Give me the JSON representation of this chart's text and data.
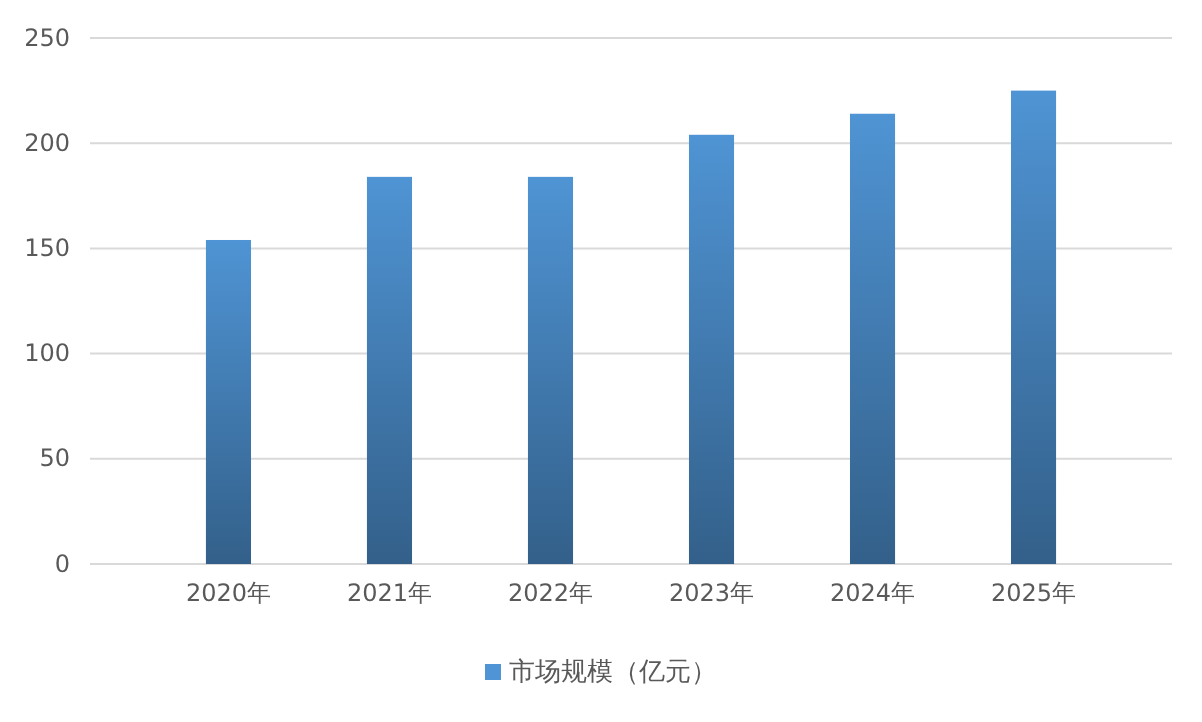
{
  "chart_data": {
    "type": "bar",
    "categories": [
      "2020年",
      "2021年",
      "2022年",
      "2023年",
      "2024年",
      "2025年"
    ],
    "series": [
      {
        "name": "市场规模（亿元）",
        "color": "#4f94d4",
        "values": [
          154,
          184,
          184,
          204,
          214,
          225
        ]
      }
    ],
    "ylim": [
      0,
      250
    ],
    "yticks": [
      0,
      50,
      100,
      150,
      200,
      250
    ],
    "grid": "y",
    "legend": "bottom"
  }
}
